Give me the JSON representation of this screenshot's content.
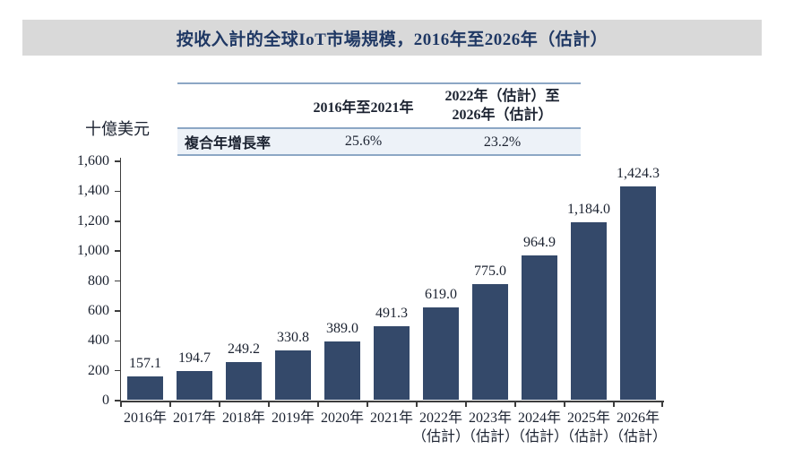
{
  "banner": {
    "title": "按收入計的全球IoT市場規模，2016年至2026年（估計）",
    "background": "#d9d9d9",
    "text_color": "#1f3864"
  },
  "unit_label": "十億美元",
  "cagr_table": {
    "period1_header": "2016年至2021年",
    "period2_header_lines": [
      "2022年（估計）至",
      "2026年（估計）"
    ],
    "row_label": "複合年增長率",
    "period1_value": "25.6%",
    "period2_value": "23.2%"
  },
  "chart_data": {
    "type": "bar",
    "title": "按收入計的全球IoT市場規模，2016年至2026年（估計）",
    "ylabel": "十億美元",
    "xlabel": "",
    "ylim": [
      0,
      1600
    ],
    "ytick_step": 200,
    "ytick_labels": [
      "0",
      "200",
      "400",
      "600",
      "800",
      "1,000",
      "1,200",
      "1,400",
      "1,600"
    ],
    "grid": false,
    "legend": null,
    "bar_color": "#34496a",
    "categories": [
      "2016年",
      "2017年",
      "2018年",
      "2019年",
      "2020年",
      "2021年",
      "2022年（估計）",
      "2023年（估計）",
      "2024年（估計）",
      "2025年（估計）",
      "2026年（估計）"
    ],
    "x_labels": [
      {
        "line1": "2016年",
        "line2": ""
      },
      {
        "line1": "2017年",
        "line2": ""
      },
      {
        "line1": "2018年",
        "line2": ""
      },
      {
        "line1": "2019年",
        "line2": ""
      },
      {
        "line1": "2020年",
        "line2": ""
      },
      {
        "line1": "2021年",
        "line2": ""
      },
      {
        "line1": "2022年",
        "line2": "（估計）"
      },
      {
        "line1": "2023年",
        "line2": "（估計）"
      },
      {
        "line1": "2024年",
        "line2": "（估計）"
      },
      {
        "line1": "2025年",
        "line2": "（估計）"
      },
      {
        "line1": "2026年",
        "line2": "（估計）"
      }
    ],
    "values": [
      157.1,
      194.7,
      249.2,
      330.8,
      389.0,
      491.3,
      619.0,
      775.0,
      964.9,
      1184.0,
      1424.3
    ],
    "value_labels": [
      "157.1",
      "194.7",
      "249.2",
      "330.8",
      "389.0",
      "491.3",
      "619.0",
      "775.0",
      "964.9",
      "1,184.0",
      "1,424.3"
    ],
    "cagr": {
      "period1": "25.6%",
      "period2": "23.2%"
    }
  }
}
